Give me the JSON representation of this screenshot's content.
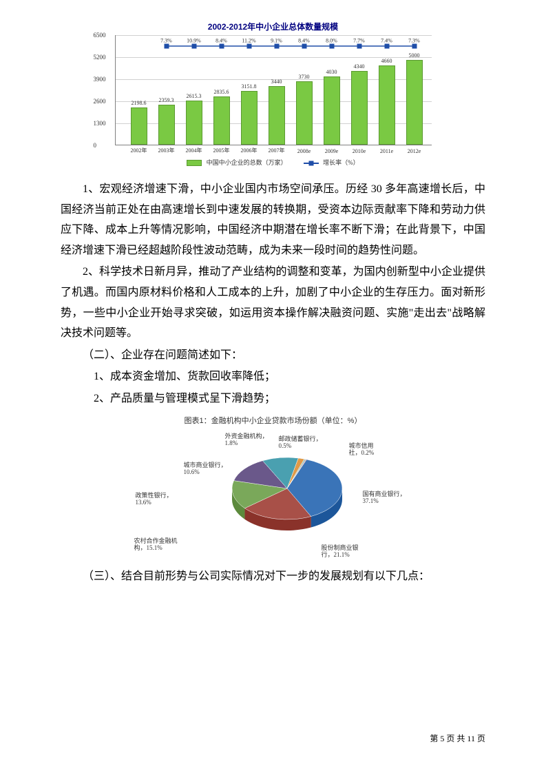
{
  "bar_chart": {
    "title": "2002-2012年中小企业总体数量规模",
    "categories": [
      "2002年",
      "2003年",
      "2004年",
      "2005年",
      "2006年",
      "2007年",
      "2008e",
      "2009e",
      "2010e",
      "2011e",
      "2012e"
    ],
    "values": [
      2198.6,
      2359.3,
      2615.3,
      2835.6,
      3151.8,
      3440,
      3730,
      4030,
      4340,
      4660,
      5000
    ],
    "growth_pct": [
      "7.3%",
      "10.9%",
      "8.4%",
      "11.2%",
      "9.1%",
      "8.4%",
      "8.0%",
      "7.7%",
      "7.4%",
      "7.3%"
    ],
    "ylim": [
      0,
      6500
    ],
    "ytick_step": 1300,
    "bar_color": "#7ac943",
    "line_color": "#1f4ea8",
    "legend_bar": "中国中小企业的总数（万家）",
    "legend_line": "增长率（%）"
  },
  "paragraphs": {
    "p1": "1、宏观经济增速下滑，中小企业国内市场空间承压。历经 30 多年高速增长后，中国经济当前正处在由高速增长到中速发展的转换期，受资本边际贡献率下降和劳动力供应下降、成本上升等情况影响，中国经济中期潜在增长率不断下滑；在此背景下，中国经济增速下滑已经超越阶段性波动范畴，成为未来一段时间的趋势性问题。",
    "p2": "2、科学技术日新月异，推动了产业结构的调整和变革，为国内创新型中小企业提供了机遇。而国内原材料价格和人工成本的上升，加剧了中小企业的生存压力。面对新形势，一些中小企业开始寻求突破，如运用资本操作解决融资问题、实施\"走出去\"战略解决技术问题等。",
    "h2_intro": "（二）、企业存在问题简述如下：",
    "h2_li1": "1、成本资金增加、货款回收率降低；",
    "h2_li2": "2、产品质量与管理模式呈下滑趋势；",
    "h3_intro": "（三）、结合目前形势与公司实际情况对下一步的发展规划有以下几点："
  },
  "pie_chart": {
    "title": "图表1：金融机构中小企业贷款市场份额（单位：%）",
    "slices": [
      {
        "label": "国有商业银行",
        "pct": "37.1%",
        "color": "#3a74b8"
      },
      {
        "label": "股份制商业银行",
        "pct": "21.1%",
        "color": "#a85048"
      },
      {
        "label": "农村合作金融机构",
        "pct": "15.1%",
        "color": "#7aa85a"
      },
      {
        "label": "政策性银行",
        "pct": "13.6%",
        "color": "#6a588a"
      },
      {
        "label": "城市商业银行",
        "pct": "10.6%",
        "color": "#4aa0b0"
      },
      {
        "label": "外资金融机构",
        "pct": "1.8%",
        "color": "#e09a48"
      },
      {
        "label": "邮政储蓄银行",
        "pct": "0.5%",
        "color": "#a0c4c0"
      },
      {
        "label": "城市信用社",
        "pct": "0.2%",
        "color": "#b85060"
      }
    ]
  },
  "footer": {
    "text_prefix": "第 ",
    "page": "5",
    "text_mid": " 页 共 ",
    "total": "11",
    "text_suffix": " 页"
  }
}
